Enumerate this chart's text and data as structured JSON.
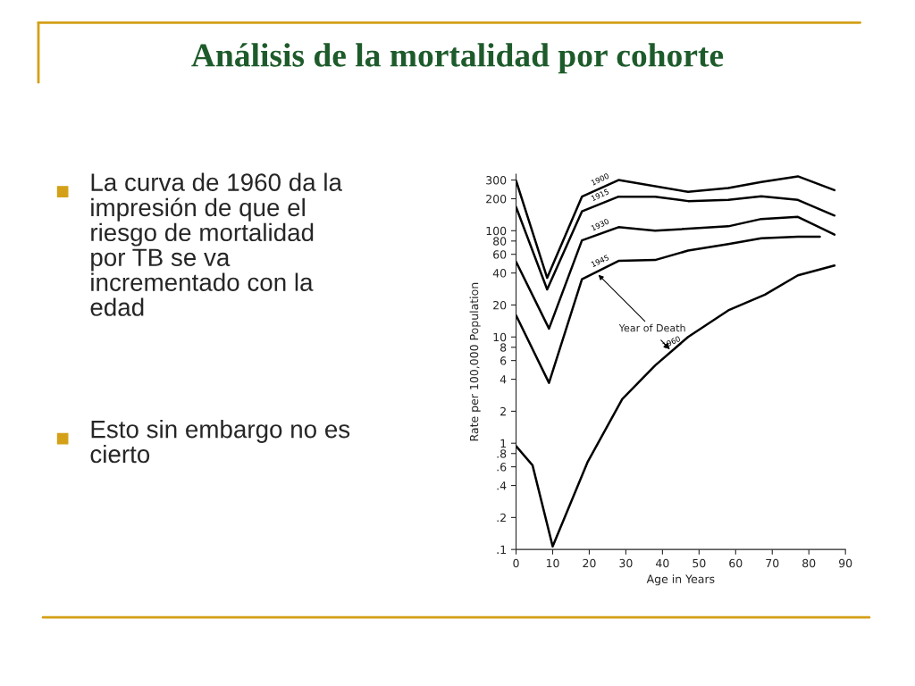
{
  "chart_data": {
    "type": "line",
    "title": "Análisis de la mortalidad por cohorte",
    "xlabel": "Age in Years",
    "ylabel": "Rate per 100,000 Population",
    "log": "y",
    "legend": false,
    "grid": false,
    "xlim": [
      0,
      90
    ],
    "xticks": [
      0,
      10,
      20,
      30,
      40,
      50,
      60,
      70,
      80,
      90
    ],
    "ylim": [
      0.1,
      340
    ],
    "yticks": [
      300,
      200,
      100,
      80,
      60,
      40,
      20,
      10,
      8,
      6,
      4,
      2,
      1,
      {
        "value": 0.8,
        "label": ".8"
      },
      {
        "value": 0.6,
        "label": ".6"
      },
      {
        "value": 0.4,
        "label": ".4"
      },
      {
        "value": 0.2,
        "label": ".2"
      },
      {
        "value": 0.1,
        "label": ".1"
      }
    ],
    "series": [
      {
        "name": "1900",
        "color": "#000000",
        "x": [
          0,
          8.5,
          18,
          28,
          47,
          58,
          67,
          77,
          87
        ],
        "values": [
          296,
          36,
          209,
          300,
          232,
          252,
          288,
          325,
          241
        ]
      },
      {
        "name": "1915",
        "color": "#000000",
        "x": [
          0,
          8.5,
          18,
          28,
          38,
          47,
          58,
          67,
          77,
          87
        ],
        "values": [
          167,
          28,
          152,
          209,
          209,
          190,
          195,
          211,
          195,
          139
        ]
      },
      {
        "name": "1930",
        "color": "#000000",
        "x": [
          0,
          9,
          18,
          28,
          38,
          58,
          67,
          77,
          87
        ],
        "values": [
          51,
          12,
          81,
          108,
          100,
          110,
          129,
          135,
          92
        ]
      },
      {
        "name": "1945",
        "color": "#000000",
        "x": [
          0,
          9,
          18,
          28,
          38,
          47,
          58,
          67,
          77,
          83
        ],
        "values": [
          16,
          3.7,
          35,
          52,
          53,
          65,
          75,
          85,
          88,
          88
        ]
      },
      {
        "name": "1960",
        "color": "#000000",
        "x": [
          0,
          4.5,
          10,
          19.5,
          29,
          38,
          47,
          58,
          68,
          77,
          87
        ],
        "values": [
          0.94,
          0.62,
          0.107,
          0.66,
          2.6,
          5.4,
          10,
          17.8,
          25,
          38,
          47
        ]
      }
    ],
    "annotations": [
      {
        "text": "Year of Death",
        "x": 22,
        "y": 40
      },
      "La curva de 1960 da la\nimpresión de que el\nriesgo de mortalidad\npor TB se va\nincrementado con la\nedad",
      "Esto sin embargo no es\ncierto"
    ]
  }
}
